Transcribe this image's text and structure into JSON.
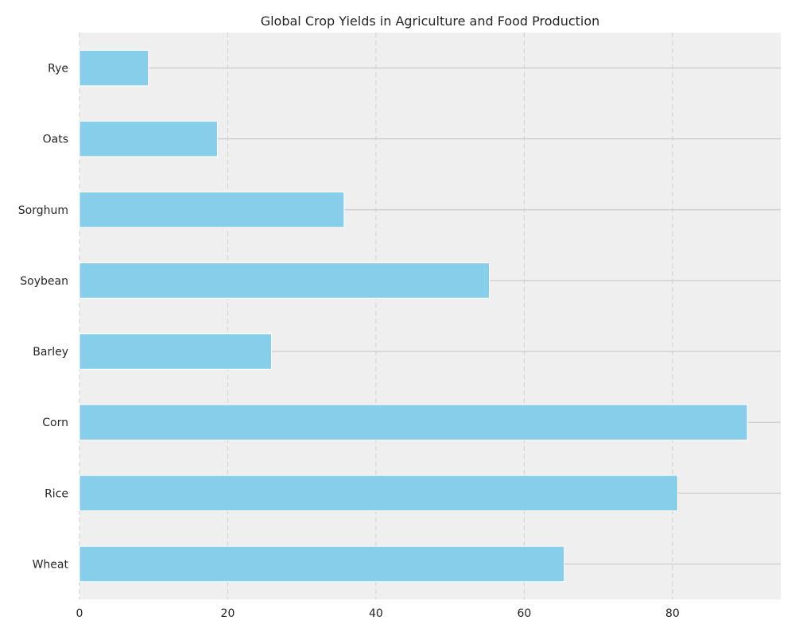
{
  "chart_data": {
    "type": "bar",
    "orientation": "horizontal",
    "title": "Global Crop Yields in Agriculture and Food Production",
    "xlabel": "",
    "ylabel": "",
    "categories": [
      "Wheat",
      "Rice",
      "Corn",
      "Barley",
      "Soybean",
      "Sorghum",
      "Oats",
      "Rye"
    ],
    "values": [
      65.4,
      80.7,
      90.1,
      25.9,
      55.3,
      35.7,
      18.6,
      9.3
    ],
    "xlim": [
      0,
      94.6
    ],
    "xticks": [
      0,
      20,
      40,
      60,
      80
    ],
    "grid": "vertical-dashed",
    "bar_color": "#87CEEB",
    "background_color": "#EFEFEF",
    "grid_color": "#D5D5D5",
    "connector_color": "#C8C8C8"
  }
}
